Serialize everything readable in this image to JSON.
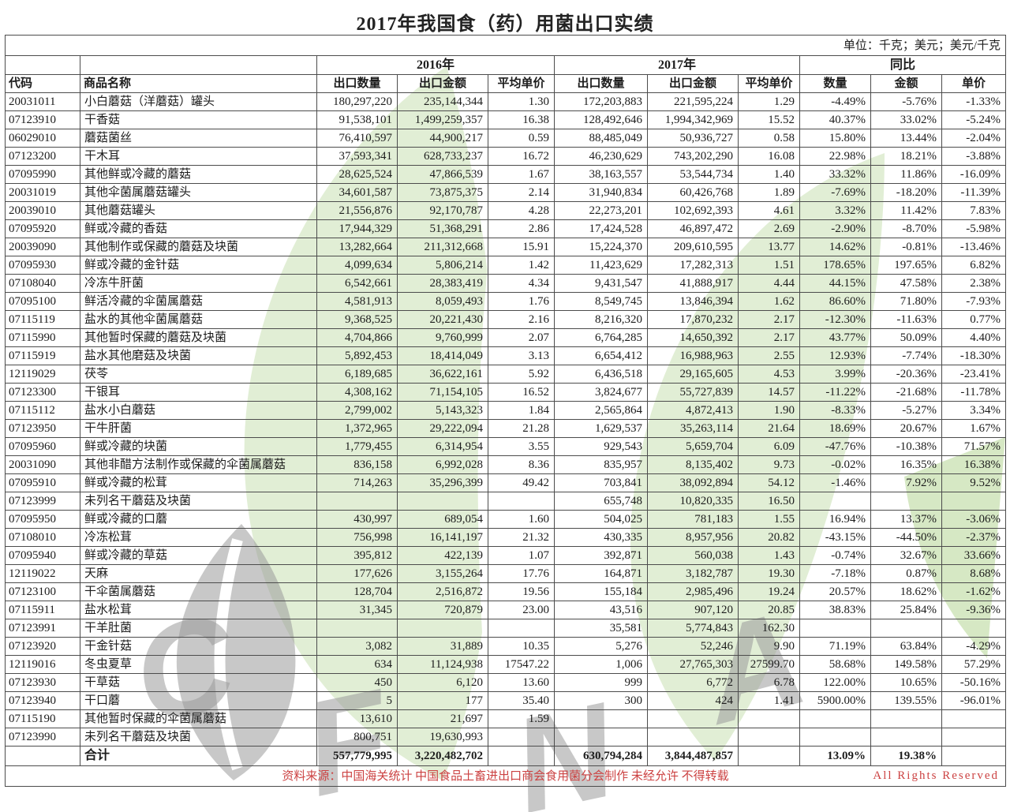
{
  "title": "2017年我国食（药）用菌出口实绩",
  "unit_note": "单位：千克；美元；美元/千克",
  "header": {
    "code": "代码",
    "name": "商品名称",
    "group_2016": "2016年",
    "group_2017": "2017年",
    "group_yoy": "同比",
    "qty": "出口数量",
    "amount": "出口金额",
    "price": "平均单价",
    "yoy_qty": "数量",
    "yoy_amount": "金额",
    "yoy_price": "单价"
  },
  "rows": [
    [
      "20031011",
      "小白蘑菇（洋蘑菇）罐头",
      "180,297,220",
      "235,144,344",
      "1.30",
      "172,203,883",
      "221,595,224",
      "1.29",
      "-4.49%",
      "-5.76%",
      "-1.33%"
    ],
    [
      "07123910",
      "干香菇",
      "91,538,101",
      "1,499,259,357",
      "16.38",
      "128,492,646",
      "1,994,342,969",
      "15.52",
      "40.37%",
      "33.02%",
      "-5.24%"
    ],
    [
      "06029010",
      "蘑菇菌丝",
      "76,410,597",
      "44,900,217",
      "0.59",
      "88,485,049",
      "50,936,727",
      "0.58",
      "15.80%",
      "13.44%",
      "-2.04%"
    ],
    [
      "07123200",
      "干木耳",
      "37,593,341",
      "628,733,237",
      "16.72",
      "46,230,629",
      "743,202,290",
      "16.08",
      "22.98%",
      "18.21%",
      "-3.88%"
    ],
    [
      "07095990",
      "其他鲜或冷藏的蘑菇",
      "28,625,524",
      "47,866,539",
      "1.67",
      "38,163,557",
      "53,544,734",
      "1.40",
      "33.32%",
      "11.86%",
      "-16.09%"
    ],
    [
      "20031019",
      "其他伞菌属蘑菇罐头",
      "34,601,587",
      "73,875,375",
      "2.14",
      "31,940,834",
      "60,426,768",
      "1.89",
      "-7.69%",
      "-18.20%",
      "-11.39%"
    ],
    [
      "20039010",
      "其他蘑菇罐头",
      "21,556,876",
      "92,170,787",
      "4.28",
      "22,273,201",
      "102,692,393",
      "4.61",
      "3.32%",
      "11.42%",
      "7.83%"
    ],
    [
      "07095920",
      "鲜或冷藏的香菇",
      "17,944,329",
      "51,368,291",
      "2.86",
      "17,424,528",
      "46,897,472",
      "2.69",
      "-2.90%",
      "-8.70%",
      "-5.98%"
    ],
    [
      "20039090",
      "其他制作或保藏的蘑菇及块菌",
      "13,282,664",
      "211,312,668",
      "15.91",
      "15,224,370",
      "209,610,595",
      "13.77",
      "14.62%",
      "-0.81%",
      "-13.46%"
    ],
    [
      "07095930",
      "鲜或冷藏的金针菇",
      "4,099,634",
      "5,806,214",
      "1.42",
      "11,423,629",
      "17,282,313",
      "1.51",
      "178.65%",
      "197.65%",
      "6.82%"
    ],
    [
      "07108040",
      "冷冻牛肝菌",
      "6,542,661",
      "28,383,419",
      "4.34",
      "9,431,547",
      "41,888,917",
      "4.44",
      "44.15%",
      "47.58%",
      "2.38%"
    ],
    [
      "07095100",
      "鲜活冷藏的伞菌属蘑菇",
      "4,581,913",
      "8,059,493",
      "1.76",
      "8,549,745",
      "13,846,394",
      "1.62",
      "86.60%",
      "71.80%",
      "-7.93%"
    ],
    [
      "07115119",
      "盐水的其他伞菌属蘑菇",
      "9,368,525",
      "20,221,430",
      "2.16",
      "8,216,320",
      "17,870,232",
      "2.17",
      "-12.30%",
      "-11.63%",
      "0.77%"
    ],
    [
      "07115990",
      "其他暂时保藏的蘑菇及块菌",
      "4,704,866",
      "9,760,999",
      "2.07",
      "6,764,285",
      "14,650,392",
      "2.17",
      "43.77%",
      "50.09%",
      "4.40%"
    ],
    [
      "07115919",
      "盐水其他磨菇及块菌",
      "5,892,453",
      "18,414,049",
      "3.13",
      "6,654,412",
      "16,988,963",
      "2.55",
      "12.93%",
      "-7.74%",
      "-18.30%"
    ],
    [
      "12119029",
      "茯苓",
      "6,189,685",
      "36,622,161",
      "5.92",
      "6,436,518",
      "29,165,605",
      "4.53",
      "3.99%",
      "-20.36%",
      "-23.41%"
    ],
    [
      "07123300",
      "干银耳",
      "4,308,162",
      "71,154,105",
      "16.52",
      "3,824,677",
      "55,727,839",
      "14.57",
      "-11.22%",
      "-21.68%",
      "-11.78%"
    ],
    [
      "07115112",
      "盐水小白蘑菇",
      "2,799,002",
      "5,143,323",
      "1.84",
      "2,565,864",
      "4,872,413",
      "1.90",
      "-8.33%",
      "-5.27%",
      "3.34%"
    ],
    [
      "07123950",
      "干牛肝菌",
      "1,372,965",
      "29,222,094",
      "21.28",
      "1,629,537",
      "35,263,114",
      "21.64",
      "18.69%",
      "20.67%",
      "1.67%"
    ],
    [
      "07095960",
      "鲜或冷藏的块菌",
      "1,779,455",
      "6,314,954",
      "3.55",
      "929,543",
      "5,659,704",
      "6.09",
      "-47.76%",
      "-10.38%",
      "71.57%"
    ],
    [
      "20031090",
      "其他非醋方法制作或保藏的伞菌属蘑菇",
      "836,158",
      "6,992,028",
      "8.36",
      "835,957",
      "8,135,402",
      "9.73",
      "-0.02%",
      "16.35%",
      "16.38%"
    ],
    [
      "07095910",
      "鲜或冷藏的松茸",
      "714,263",
      "35,296,399",
      "49.42",
      "703,841",
      "38,092,894",
      "54.12",
      "-1.46%",
      "7.92%",
      "9.52%"
    ],
    [
      "07123999",
      "未列名干蘑菇及块菌",
      "",
      "",
      "",
      "655,748",
      "10,820,335",
      "16.50",
      "",
      "",
      ""
    ],
    [
      "07095950",
      "鲜或冷藏的口蘑",
      "430,997",
      "689,054",
      "1.60",
      "504,025",
      "781,183",
      "1.55",
      "16.94%",
      "13.37%",
      "-3.06%"
    ],
    [
      "07108010",
      "冷冻松茸",
      "756,998",
      "16,141,197",
      "21.32",
      "430,335",
      "8,957,956",
      "20.82",
      "-43.15%",
      "-44.50%",
      "-2.37%"
    ],
    [
      "07095940",
      "鲜或冷藏的草菇",
      "395,812",
      "422,139",
      "1.07",
      "392,871",
      "560,038",
      "1.43",
      "-0.74%",
      "32.67%",
      "33.66%"
    ],
    [
      "12119022",
      "天麻",
      "177,626",
      "3,155,264",
      "17.76",
      "164,871",
      "3,182,787",
      "19.30",
      "-7.18%",
      "0.87%",
      "8.68%"
    ],
    [
      "07123100",
      "干伞菌属蘑菇",
      "128,704",
      "2,516,872",
      "19.56",
      "155,184",
      "2,985,496",
      "19.24",
      "20.57%",
      "18.62%",
      "-1.62%"
    ],
    [
      "07115911",
      "盐水松茸",
      "31,345",
      "720,879",
      "23.00",
      "43,516",
      "907,120",
      "20.85",
      "38.83%",
      "25.84%",
      "-9.36%"
    ],
    [
      "07123991",
      "干羊肚菌",
      "",
      "",
      "",
      "35,581",
      "5,774,843",
      "162.30",
      "",
      "",
      ""
    ],
    [
      "07123920",
      "干金针菇",
      "3,082",
      "31,889",
      "10.35",
      "5,276",
      "52,246",
      "9.90",
      "71.19%",
      "63.84%",
      "-4.29%"
    ],
    [
      "12119016",
      "冬虫夏草",
      "634",
      "11,124,938",
      "17547.22",
      "1,006",
      "27,765,303",
      "27599.70",
      "58.68%",
      "149.58%",
      "57.29%"
    ],
    [
      "07123930",
      "干草菇",
      "450",
      "6,120",
      "13.60",
      "999",
      "6,772",
      "6.78",
      "122.00%",
      "10.65%",
      "-50.16%"
    ],
    [
      "07123940",
      "干口蘑",
      "5",
      "177",
      "35.40",
      "300",
      "424",
      "1.41",
      "5900.00%",
      "139.55%",
      "-96.01%"
    ],
    [
      "07115190",
      "其他暂时保藏的伞菌属蘑菇",
      "13,610",
      "21,697",
      "1.59",
      "",
      "",
      "",
      "",
      "",
      ""
    ],
    [
      "07123990",
      "未列名干蘑菇及块菌",
      "800,751",
      "19,630,993",
      "",
      "",
      "",
      "",
      "",
      "",
      ""
    ]
  ],
  "total_row": [
    "",
    "合计",
    "557,779,995",
    "3,220,482,702",
    "",
    "630,794,284",
    "3,844,487,857",
    "",
    "13.09%",
    "19.38%",
    ""
  ],
  "footer": {
    "source": "资料来源：中国海关统计 中国食品土畜进出口商会食用菌分会制作 未经允许 不得转载",
    "rights": "All Rights Reserved"
  },
  "watermark": {
    "letters": [
      "C",
      "F",
      "N",
      "A"
    ],
    "leaf_green": "#9dc873",
    "letter_gray": "#9a9a9a"
  }
}
